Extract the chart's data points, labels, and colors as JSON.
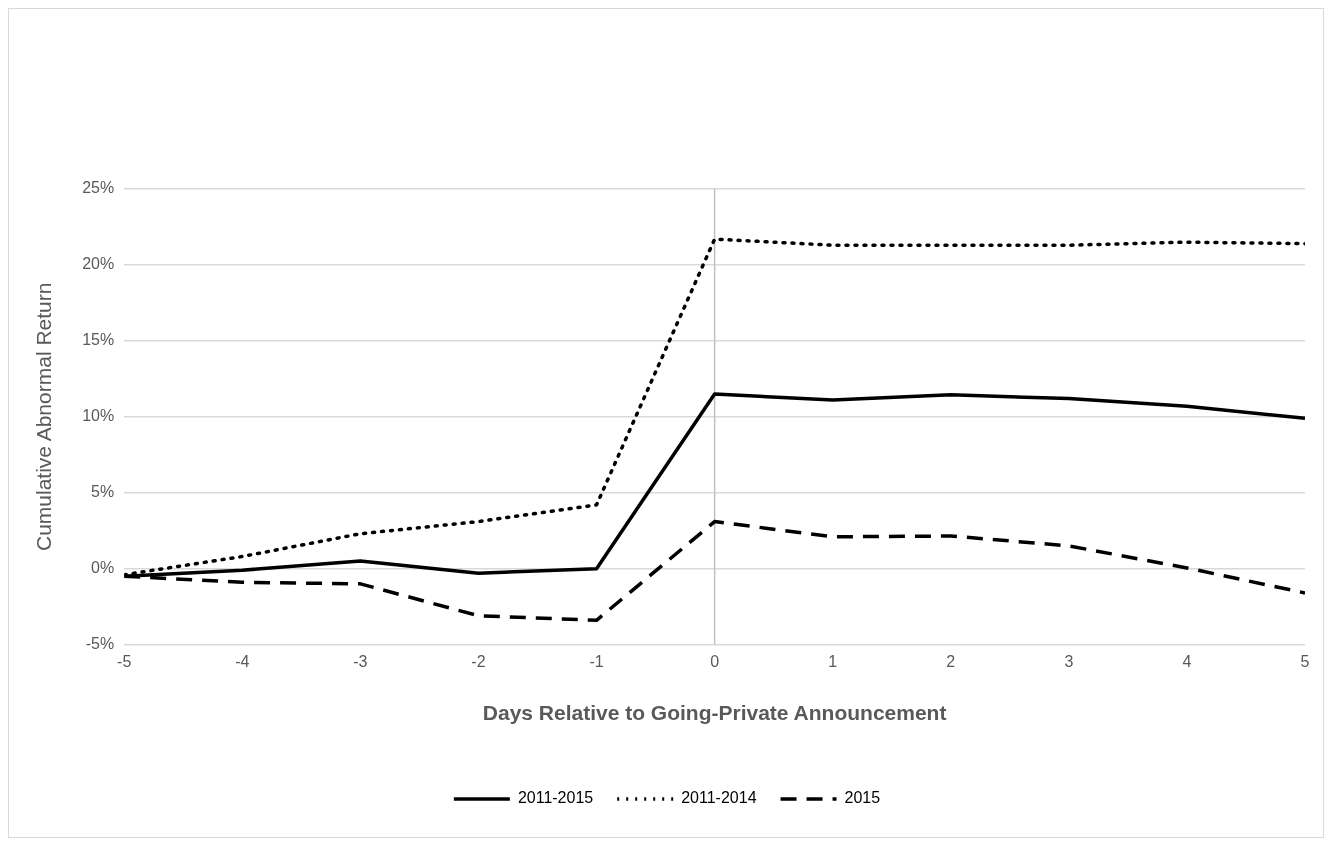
{
  "chart_data": {
    "type": "line",
    "xlabel": "Days Relative to Going-Private Announcement",
    "ylabel": "Cumulative Abnormal Return",
    "x": [
      -5,
      -4,
      -3,
      -2,
      -1,
      0,
      1,
      2,
      3,
      4,
      5
    ],
    "xlim": [
      -5,
      5
    ],
    "xticks": [
      -5,
      -4,
      -3,
      -2,
      -1,
      0,
      1,
      2,
      3,
      4,
      5
    ],
    "ylim": [
      -5,
      25
    ],
    "yticks": [
      {
        "value": -5,
        "label": "-5%"
      },
      {
        "value": 0,
        "label": "0%"
      },
      {
        "value": 5,
        "label": "5%"
      },
      {
        "value": 10,
        "label": "10%"
      },
      {
        "value": 15,
        "label": "15%"
      },
      {
        "value": 20,
        "label": "20%"
      },
      {
        "value": 25,
        "label": "25%"
      }
    ],
    "grid": "y",
    "legend": "bottom",
    "marker": "none",
    "ref_lines": [
      {
        "axis": "x",
        "value": 0,
        "color": "#bfbfbf"
      }
    ],
    "series": [
      {
        "name": "2011-2015",
        "color": "#000000",
        "line_style": "solid",
        "values": [
          -0.5,
          -0.1,
          0.5,
          -0.3,
          0.0,
          11.5,
          11.1,
          11.45,
          11.2,
          10.7,
          9.9
        ]
      },
      {
        "name": "2011-2014",
        "color": "#000000",
        "line_style": "dotted",
        "values": [
          -0.4,
          0.8,
          2.3,
          3.1,
          4.2,
          21.7,
          21.3,
          21.3,
          21.3,
          21.5,
          21.4
        ]
      },
      {
        "name": "2015",
        "color": "#000000",
        "line_style": "dashed",
        "values": [
          -0.5,
          -0.9,
          -1.0,
          -3.1,
          -3.4,
          3.1,
          2.1,
          2.15,
          1.5,
          0.05,
          -1.6
        ]
      }
    ]
  }
}
